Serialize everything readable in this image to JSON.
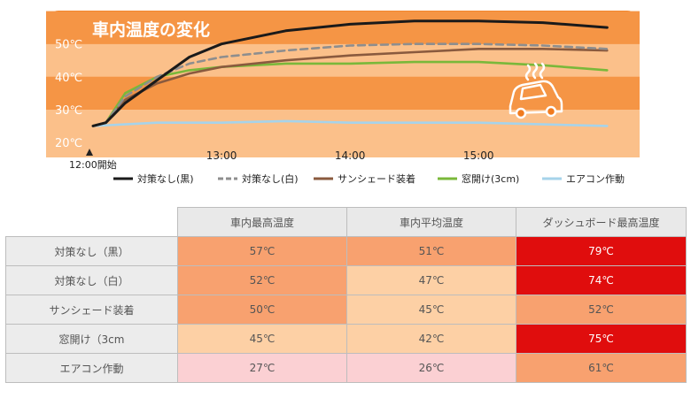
{
  "chart_data": {
    "type": "line",
    "title": "車内温度の変化",
    "x_start_label": "12:00開始",
    "x_ticks": [
      "13:00",
      "14:00",
      "15:00"
    ],
    "y_ticks": [
      "20℃",
      "30℃",
      "40℃",
      "50℃"
    ],
    "ylim": [
      20,
      58
    ],
    "xlim_hours": [
      0,
      4
    ],
    "series": [
      {
        "name": "対策なし(黒)",
        "color": "#1a1a1a",
        "dash": "solid",
        "x": [
          0,
          0.1,
          0.25,
          0.5,
          0.75,
          1.0,
          1.5,
          2.0,
          2.5,
          3.0,
          3.5,
          4.0
        ],
        "values": [
          25,
          26,
          32,
          39,
          46,
          50,
          54,
          56,
          57,
          57,
          56.5,
          55
        ]
      },
      {
        "name": "対策なし(白)",
        "color": "#8e8e8e",
        "dash": "dashed",
        "x": [
          0,
          0.1,
          0.25,
          0.5,
          0.75,
          1.0,
          1.5,
          2.0,
          2.5,
          3.0,
          3.5,
          4.0
        ],
        "values": [
          25,
          26,
          34,
          40,
          44,
          46,
          48,
          49.5,
          50,
          50,
          49.5,
          48.5
        ]
      },
      {
        "name": "サンシェード装着",
        "color": "#8a5a3e",
        "dash": "solid",
        "x": [
          0,
          0.1,
          0.25,
          0.5,
          0.75,
          1.0,
          1.5,
          2.0,
          2.5,
          3.0,
          3.5,
          4.0
        ],
        "values": [
          25,
          26,
          33,
          38,
          41,
          43,
          45,
          46.5,
          47.5,
          48.5,
          48.5,
          48
        ]
      },
      {
        "name": "窓開け(3cm)",
        "color": "#7ab83a",
        "dash": "solid",
        "x": [
          0,
          0.1,
          0.25,
          0.5,
          0.75,
          1.0,
          1.5,
          2.0,
          2.5,
          3.0,
          3.5,
          4.0
        ],
        "values": [
          25,
          26,
          35,
          40,
          42,
          43,
          44,
          44,
          44.5,
          44.5,
          43.5,
          42
        ]
      },
      {
        "name": "エアコン作動",
        "color": "#a6d3ea",
        "dash": "solid",
        "x": [
          0,
          0.25,
          0.5,
          1.0,
          1.5,
          2.0,
          2.5,
          3.0,
          3.5,
          4.0
        ],
        "values": [
          25,
          25.5,
          26,
          26,
          26.5,
          26,
          26,
          26,
          25.5,
          25
        ]
      }
    ]
  },
  "table": {
    "columns": [
      "車内最高温度",
      "車内平均温度",
      "ダッシュボード最高温度"
    ],
    "rows": [
      {
        "label": "対策なし（黒）",
        "cells": [
          "57℃",
          "51℃",
          "79℃"
        ],
        "colors": [
          "#f8a16f",
          "#f8a16f",
          "#e00d0d"
        ]
      },
      {
        "label": "対策なし（白）",
        "cells": [
          "52℃",
          "47℃",
          "74℃"
        ],
        "colors": [
          "#f8a16f",
          "#fdd0a5",
          "#e00d0d"
        ]
      },
      {
        "label": "サンシェード装着",
        "cells": [
          "50℃",
          "45℃",
          "52℃"
        ],
        "colors": [
          "#f8a16f",
          "#fdd0a5",
          "#f8a16f"
        ]
      },
      {
        "label": "窓開け（3cm",
        "cells": [
          "45℃",
          "42℃",
          "75℃"
        ],
        "colors": [
          "#fdd0a5",
          "#fdd0a5",
          "#e00d0d"
        ]
      },
      {
        "label": "エアコン作動",
        "cells": [
          "27℃",
          "26℃",
          "61℃"
        ],
        "colors": [
          "#fbd0d3",
          "#fbd0d3",
          "#f8a16f"
        ]
      }
    ]
  },
  "colors": {
    "chart_panel": "#f07b1f",
    "chart_band_dark": "#f59545",
    "chart_band_light": "#fbc08a",
    "cell_red": "#e00d0d",
    "cell_orange": "#f8a16f",
    "cell_peach": "#fdd0a5",
    "cell_pink": "#fbd0d3"
  },
  "icons": {
    "car": "hot-car-icon"
  }
}
